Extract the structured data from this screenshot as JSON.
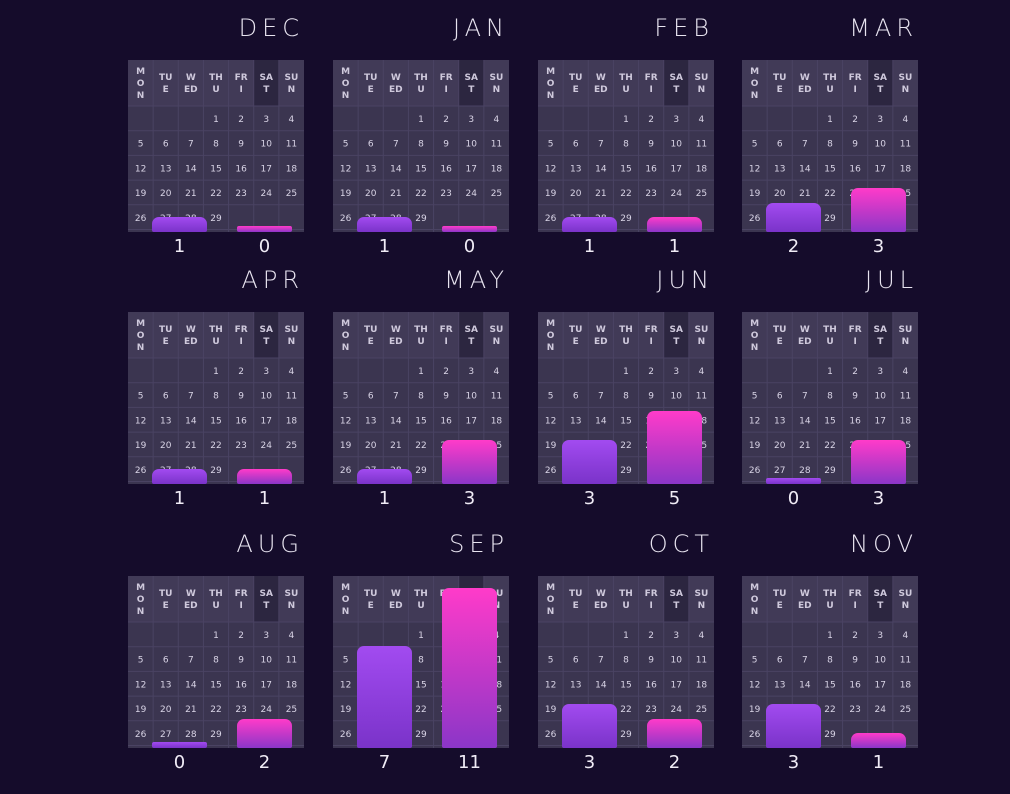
{
  "chart_data": {
    "type": "bar",
    "weekday_labels": [
      [
        "M",
        "O",
        "N"
      ],
      [
        "TU",
        "E"
      ],
      [
        "W",
        "ED"
      ],
      [
        "TH",
        "U"
      ],
      [
        "FR",
        "I"
      ],
      [
        "SA",
        "T"
      ],
      [
        "SU",
        "N"
      ]
    ],
    "calendar_days": [
      "1",
      "2",
      "3",
      "4",
      "5",
      "6",
      "7",
      "8",
      "9",
      "10",
      "11",
      "12",
      "13",
      "14",
      "15",
      "16",
      "17",
      "18",
      "19",
      "20",
      "21",
      "22",
      "23",
      "24",
      "25",
      "26",
      "27",
      "28",
      "29"
    ],
    "ylim": [
      0,
      11
    ],
    "months": [
      {
        "month": "DEC",
        "values": [
          1,
          0
        ]
      },
      {
        "month": "JAN",
        "values": [
          1,
          0
        ]
      },
      {
        "month": "FEB",
        "values": [
          1,
          1
        ]
      },
      {
        "month": "MAR",
        "values": [
          2,
          3
        ]
      },
      {
        "month": "APR",
        "values": [
          1,
          1
        ]
      },
      {
        "month": "MAY",
        "values": [
          1,
          3
        ]
      },
      {
        "month": "JUN",
        "values": [
          3,
          5
        ]
      },
      {
        "month": "JUL",
        "values": [
          0,
          3
        ]
      },
      {
        "month": "AUG",
        "values": [
          0,
          2
        ]
      },
      {
        "month": "SEP",
        "values": [
          7,
          11
        ]
      },
      {
        "month": "OCT",
        "values": [
          3,
          2
        ]
      },
      {
        "month": "NOV",
        "values": [
          3,
          1
        ]
      }
    ],
    "colors": [
      "#9b45ea",
      "#ff3bc9"
    ]
  }
}
